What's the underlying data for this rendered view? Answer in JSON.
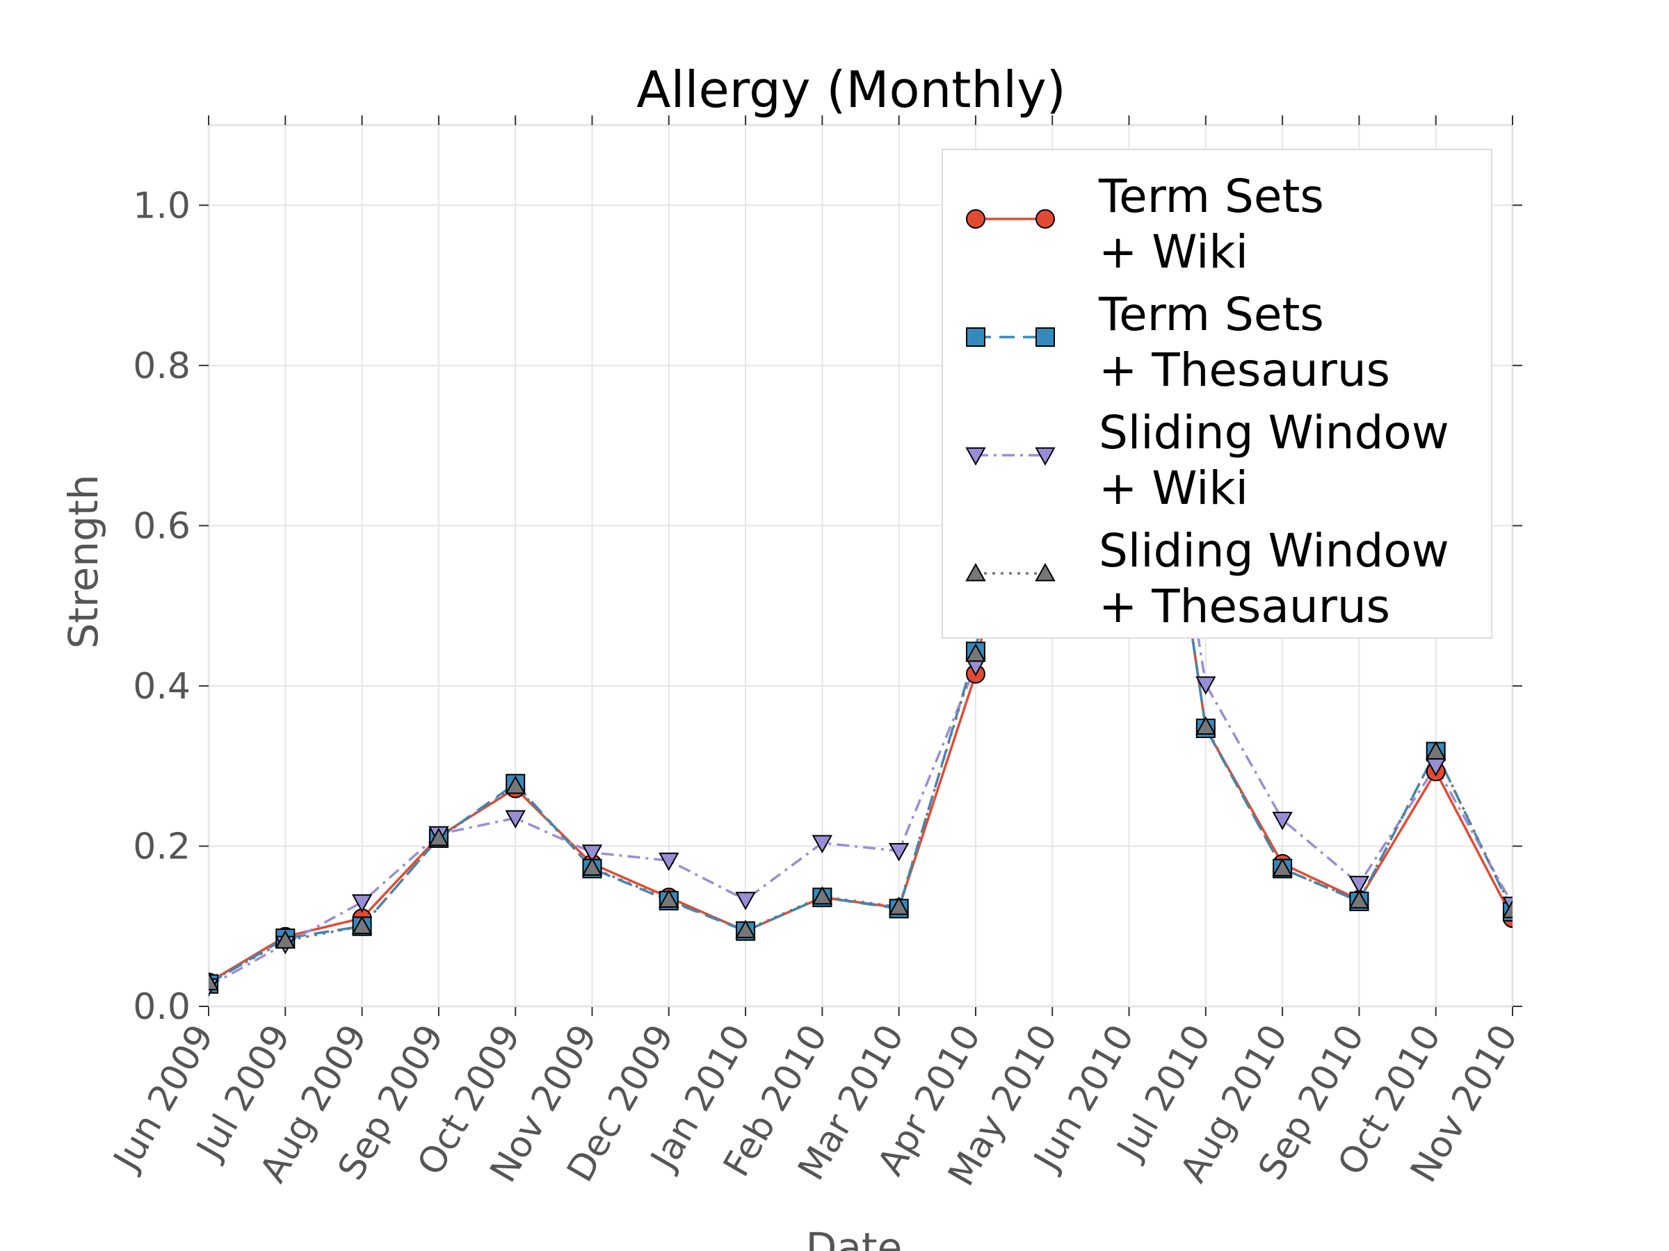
{
  "chart_data": {
    "type": "line",
    "title": "Allergy (Monthly)",
    "xlabel": "Date",
    "ylabel": "Strength",
    "ylim": [
      0,
      1.1
    ],
    "yticks": [
      "0.0",
      "0.2",
      "0.4",
      "0.6",
      "0.8",
      "1.0"
    ],
    "grid": true,
    "legend_position": "top-right",
    "categories": [
      "Jun 2009",
      "Jul 2009",
      "Aug 2009",
      "Sep 2009",
      "Oct 2009",
      "Nov 2009",
      "Dec 2009",
      "Jan 2010",
      "Feb 2010",
      "Mar 2010",
      "Apr 2010",
      "May 2010",
      "Jun 2010",
      "Jul 2010",
      "Aug 2010",
      "Sep 2010",
      "Oct 2010",
      "Nov 2010"
    ],
    "series": [
      {
        "name": "Term Sets\n+ Wiki",
        "color": "#E24A33",
        "marker": "circle",
        "linestyle": "solid",
        "values": [
          0.03,
          0.087,
          0.11,
          0.212,
          0.272,
          0.178,
          0.136,
          0.094,
          0.136,
          0.123,
          0.415,
          1.0,
          1.0,
          0.347,
          0.178,
          0.133,
          0.293,
          0.11
        ]
      },
      {
        "name": "Term Sets\n+ Thesaurus",
        "color": "#348ABD",
        "marker": "square",
        "linestyle": "dashed",
        "values": [
          0.028,
          0.085,
          0.1,
          0.21,
          0.278,
          0.172,
          0.132,
          0.094,
          0.136,
          0.122,
          0.443,
          1.0,
          1.0,
          0.347,
          0.172,
          0.131,
          0.318,
          0.118
        ]
      },
      {
        "name": "Sliding Window\n+ Wiki",
        "color": "#988ED5",
        "marker": "triangle-down",
        "linestyle": "dashdot",
        "values": [
          0.025,
          0.078,
          0.13,
          0.215,
          0.235,
          0.192,
          0.182,
          0.133,
          0.204,
          0.194,
          0.425,
          1.0,
          1.0,
          0.402,
          0.233,
          0.153,
          0.3,
          0.127
        ]
      },
      {
        "name": "Sliding Window\n+ Thesaurus",
        "color": "#777777",
        "marker": "triangle-up",
        "linestyle": "dotted",
        "values": [
          0.03,
          0.082,
          0.1,
          0.21,
          0.275,
          0.173,
          0.133,
          0.095,
          0.137,
          0.124,
          0.44,
          1.0,
          1.0,
          0.349,
          0.172,
          0.132,
          0.318,
          0.12
        ]
      }
    ]
  }
}
